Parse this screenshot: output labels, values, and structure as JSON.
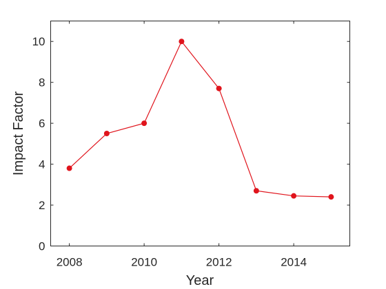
{
  "chart_data": {
    "type": "line",
    "title": "",
    "xlabel": "Year",
    "ylabel": "Impact Factor",
    "xlim": [
      2007.5,
      2015.5
    ],
    "ylim": [
      0,
      11
    ],
    "x_ticks": [
      "2008",
      "2010",
      "2012",
      "2014"
    ],
    "y_ticks": [
      "0",
      "2",
      "4",
      "6",
      "8",
      "10"
    ],
    "grid": false,
    "legend": "none",
    "series": [
      {
        "color": "#e0141c",
        "x": [
          2008,
          2009,
          2010,
          2011,
          2012,
          2013,
          2014,
          2015
        ],
        "y": [
          3.8,
          5.5,
          6.0,
          10.0,
          7.7,
          2.7,
          2.45,
          2.4
        ]
      }
    ]
  }
}
